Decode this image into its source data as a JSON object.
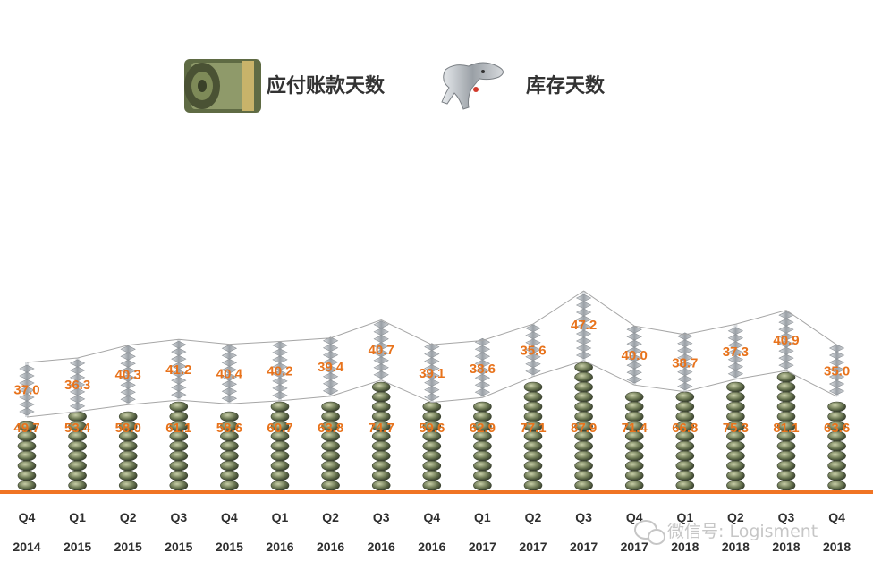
{
  "chart_data": {
    "type": "bar",
    "categories": [
      [
        "Q4",
        "2014"
      ],
      [
        "Q1",
        "2015"
      ],
      [
        "Q2",
        "2015"
      ],
      [
        "Q3",
        "2015"
      ],
      [
        "Q4",
        "2015"
      ],
      [
        "Q1",
        "2016"
      ],
      [
        "Q2",
        "2016"
      ],
      [
        "Q3",
        "2016"
      ],
      [
        "Q4",
        "2016"
      ],
      [
        "Q1",
        "2017"
      ],
      [
        "Q2",
        "2017"
      ],
      [
        "Q3",
        "2017"
      ],
      [
        "Q4",
        "2017"
      ],
      [
        "Q1",
        "2018"
      ],
      [
        "Q2",
        "2018"
      ],
      [
        "Q3",
        "2018"
      ],
      [
        "Q4",
        "2018"
      ]
    ],
    "series": [
      {
        "name": "应付账款天数",
        "icon": "money-roll-icon",
        "values": [
          49.7,
          53.4,
          58.0,
          61.1,
          58.6,
          60.7,
          63.8,
          74.7,
          59.6,
          62.9,
          77.1,
          87.9,
          71.4,
          66.8,
          75.3,
          81.1,
          63.6
        ],
        "labels": [
          "49.7",
          "53.4",
          "58.0",
          "61.1",
          "58.6",
          "60.7",
          "63.8",
          "74.7",
          "59.6",
          "62.9",
          "77.1",
          "87.9",
          "71.4",
          "66.8",
          "75.3",
          "81.1",
          "63.6"
        ]
      },
      {
        "name": "库存天数",
        "icon": "bone-dog-icon",
        "values": [
          37.0,
          36.3,
          40.3,
          41.2,
          40.4,
          40.2,
          39.4,
          40.7,
          39.1,
          38.6,
          35.6,
          47.2,
          40.0,
          38.7,
          37.3,
          40.9,
          35.0
        ],
        "labels": [
          "37.0",
          "36.3",
          "40.3",
          "41.2",
          "40.4",
          "40.2",
          "39.4",
          "40.7",
          "39.1",
          "38.6",
          "35.6",
          "47.2",
          "40.0",
          "38.7",
          "37.3",
          "40.9",
          "35.0"
        ]
      }
    ],
    "stacked": true,
    "colors": {
      "bottom": "#6e7a55",
      "top": "#9aa0a6",
      "labels": "#e8731c",
      "baseline": "#f07424",
      "connector": "#a6a6a6"
    },
    "legend_position": "top-center",
    "grid": false
  },
  "watermark": "微信号: Logisment"
}
